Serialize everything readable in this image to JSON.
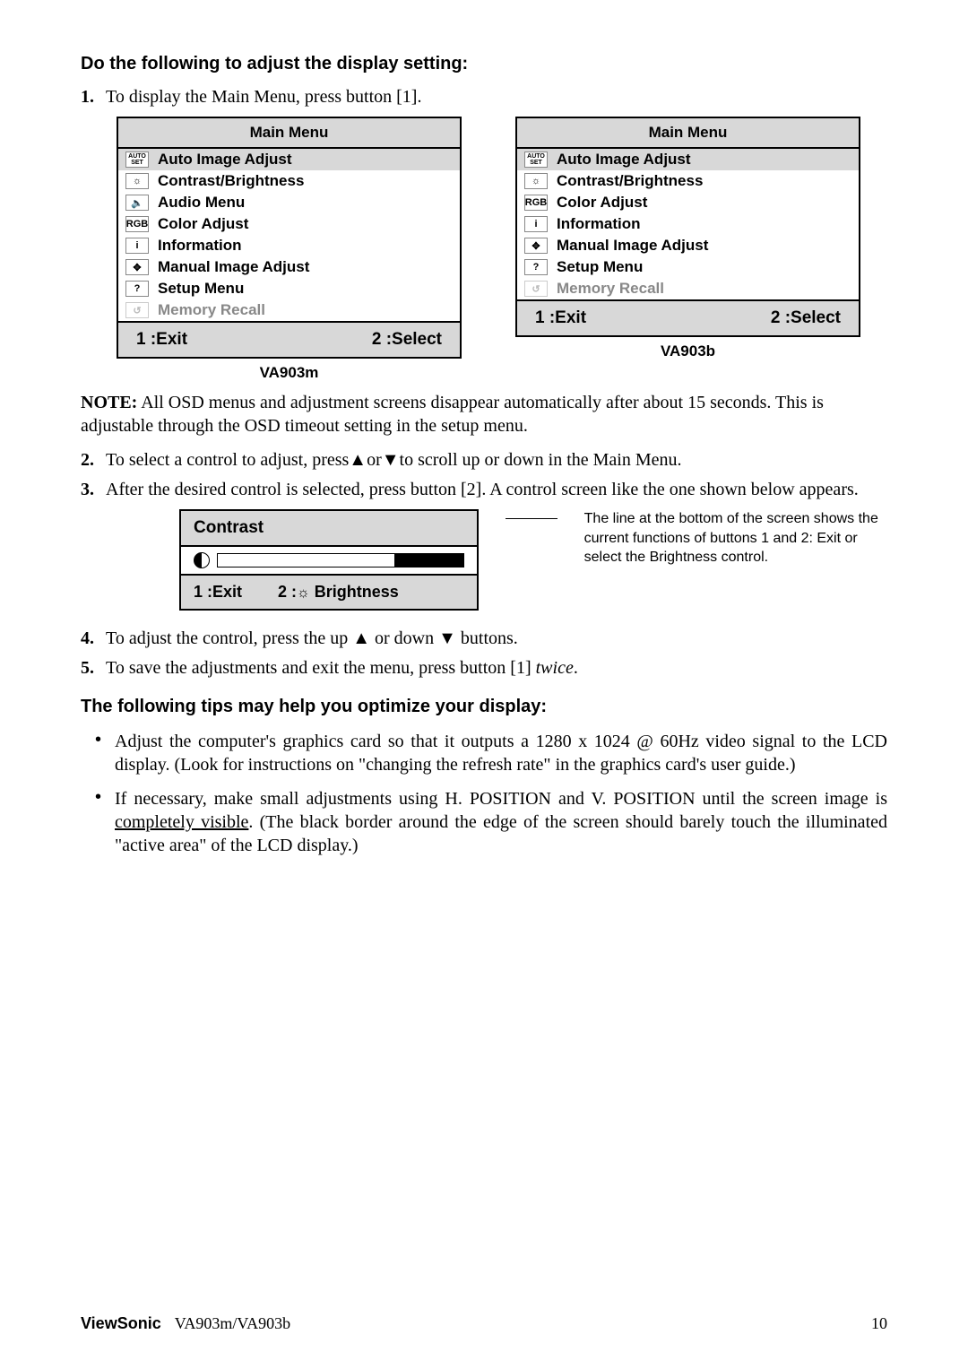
{
  "heading1": "Do the following to adjust the display setting:",
  "step1": {
    "num": "1.",
    "text": "To display the Main Menu, press button [1]."
  },
  "menuLeft": {
    "title": "Main Menu",
    "items": [
      {
        "label": "Auto Image Adjust",
        "icon": "auto-set",
        "highlight": true
      },
      {
        "label": "Contrast/Brightness",
        "icon": "sun"
      },
      {
        "label": "Audio Menu",
        "icon": "speaker"
      },
      {
        "label": "Color Adjust",
        "icon": "rgb"
      },
      {
        "label": "Information",
        "icon": "info"
      },
      {
        "label": "Manual Image Adjust",
        "icon": "arrows"
      },
      {
        "label": "Setup Menu",
        "icon": "question"
      },
      {
        "label": "Memory Recall",
        "icon": "recall",
        "dim": true
      }
    ],
    "footerLeft": "1 :Exit",
    "footerRight": "2 :Select",
    "caption": "VA903m"
  },
  "menuRight": {
    "title": "Main Menu",
    "items": [
      {
        "label": "Auto Image Adjust",
        "icon": "auto-set",
        "highlight": true
      },
      {
        "label": "Contrast/Brightness",
        "icon": "sun"
      },
      {
        "label": "Color Adjust",
        "icon": "rgb"
      },
      {
        "label": "Information",
        "icon": "info"
      },
      {
        "label": "Manual Image Adjust",
        "icon": "arrows"
      },
      {
        "label": "Setup Menu",
        "icon": "question"
      },
      {
        "label": "Memory Recall",
        "icon": "recall",
        "dim": true
      }
    ],
    "footerLeft": "1 :Exit",
    "footerRight": "2 :Select",
    "caption": "VA903b"
  },
  "note": {
    "label": "NOTE:",
    "text": " All OSD menus and adjustment screens disappear automatically after about 15 seconds. This is adjustable through the OSD timeout setting in the setup menu."
  },
  "step2": {
    "num": "2.",
    "text": "To select a control to adjust, press▲or▼to scroll up or down in the Main Menu."
  },
  "step3": {
    "num": "3.",
    "text": "After the desired control is selected, press button [2]. A control screen like the one shown below appears."
  },
  "contrast": {
    "title": "Contrast",
    "footerLeft": "1 :Exit",
    "footerRightPrefix": "2 :",
    "footerRightLabel": " Brightness"
  },
  "callout": "The line at the bottom of the screen shows the current functions of buttons 1 and 2: Exit or select the Brightness control.",
  "step4": {
    "num": "4.",
    "text": "To adjust the control, press the up ▲ or down ▼ buttons."
  },
  "step5": {
    "num": "5.",
    "textA": "To save the adjustments and exit the menu, press button [1] ",
    "textItalic": "twice",
    "textB": "."
  },
  "heading2": "The following tips may help you optimize your display:",
  "tip1": "Adjust the computer's graphics card so that it outputs a 1280 x 1024 @ 60Hz video signal to the LCD display. (Look for instructions on \"changing the refresh rate\" in the graphics card's user guide.)",
  "tip2a": "If necessary, make small adjustments using H. POSITION and V. POSITION until the screen image is ",
  "tip2u": "completely visible",
  "tip2b": ". (The black border around the edge of the screen should barely touch the illuminated \"active area\" of the LCD display.)",
  "footer": {
    "brand": "ViewSonic",
    "model": "VA903m/VA903b",
    "page": "10"
  },
  "icons": {
    "auto-set": "AUTO\nSET",
    "sun": "☼",
    "speaker": "🔈",
    "rgb": "RGB",
    "info": "i",
    "arrows": "✥",
    "question": "?",
    "recall": "↺"
  }
}
